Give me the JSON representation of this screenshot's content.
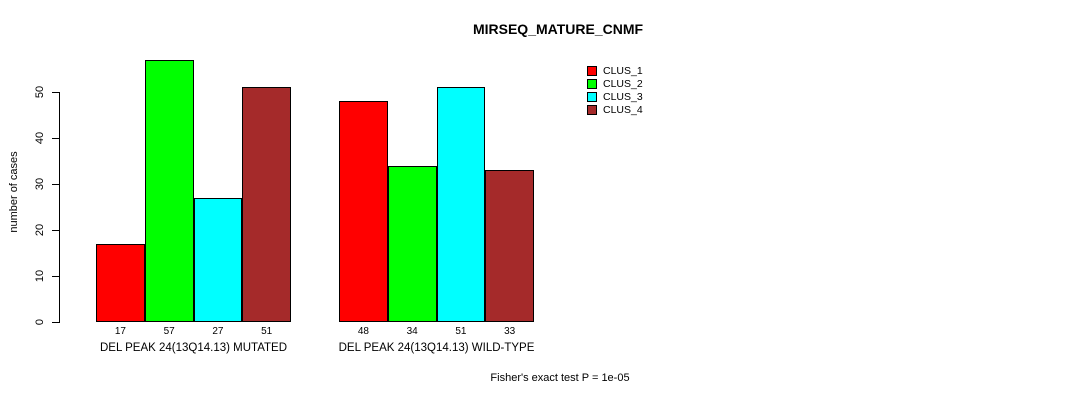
{
  "chart_data": {
    "type": "bar",
    "title": "MIRSEQ_MATURE_CNMF",
    "ylabel": "number of cases",
    "xlabel": "",
    "ylim": [
      0,
      57
    ],
    "yticks": [
      0,
      10,
      20,
      30,
      40,
      50
    ],
    "grid": false,
    "legend_position": "top-right",
    "bar_border_color": "#000000",
    "series": [
      {
        "name": "CLUS_1",
        "color": "#ff0000"
      },
      {
        "name": "CLUS_2",
        "color": "#00ff00"
      },
      {
        "name": "CLUS_3",
        "color": "#00ffff"
      },
      {
        "name": "CLUS_4",
        "color": "#a52a2a"
      }
    ],
    "groups": [
      {
        "label": "DEL PEAK 24(13Q14.13) MUTATED",
        "values": [
          17,
          57,
          27,
          51
        ]
      },
      {
        "label": "DEL PEAK 24(13Q14.13) WILD-TYPE",
        "values": [
          48,
          34,
          51,
          33
        ]
      }
    ],
    "annotation": "Fisher's exact test P = 1e-05"
  }
}
